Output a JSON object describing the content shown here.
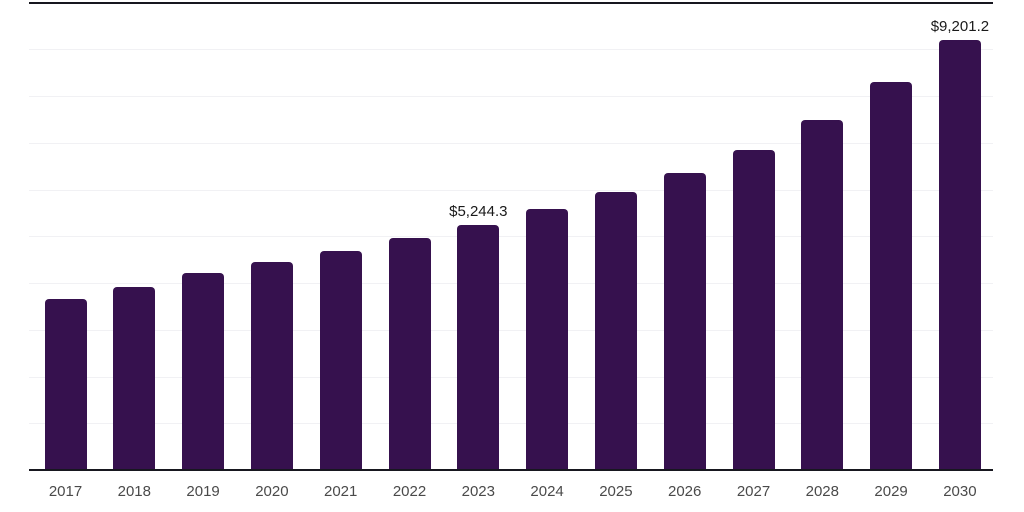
{
  "chart_data": {
    "type": "bar",
    "title": "",
    "xlabel": "",
    "ylabel": "",
    "categories": [
      "2017",
      "2018",
      "2019",
      "2020",
      "2021",
      "2022",
      "2023",
      "2024",
      "2025",
      "2026",
      "2027",
      "2028",
      "2029",
      "2030"
    ],
    "values": [
      3655,
      3905,
      4210,
      4455,
      4690,
      4955,
      5244.3,
      5580,
      5945,
      6350,
      6850,
      7490,
      8290,
      9201.2
    ],
    "data_labels": [
      {
        "category": "2023",
        "text": "$5,244.3"
      },
      {
        "category": "2030",
        "text": "$9,201.2"
      }
    ],
    "ylim": [
      0,
      10000
    ],
    "grid_interval": 1000,
    "grid": true,
    "legend": false,
    "colors": {
      "bar": "#36114E",
      "gridline": "#f1f1f4",
      "top_border": "#17171f",
      "axis_line": "#17171f",
      "tick_label": "#4a4a4a",
      "data_label": "#1a1a1a",
      "background": "#ffffff"
    }
  }
}
